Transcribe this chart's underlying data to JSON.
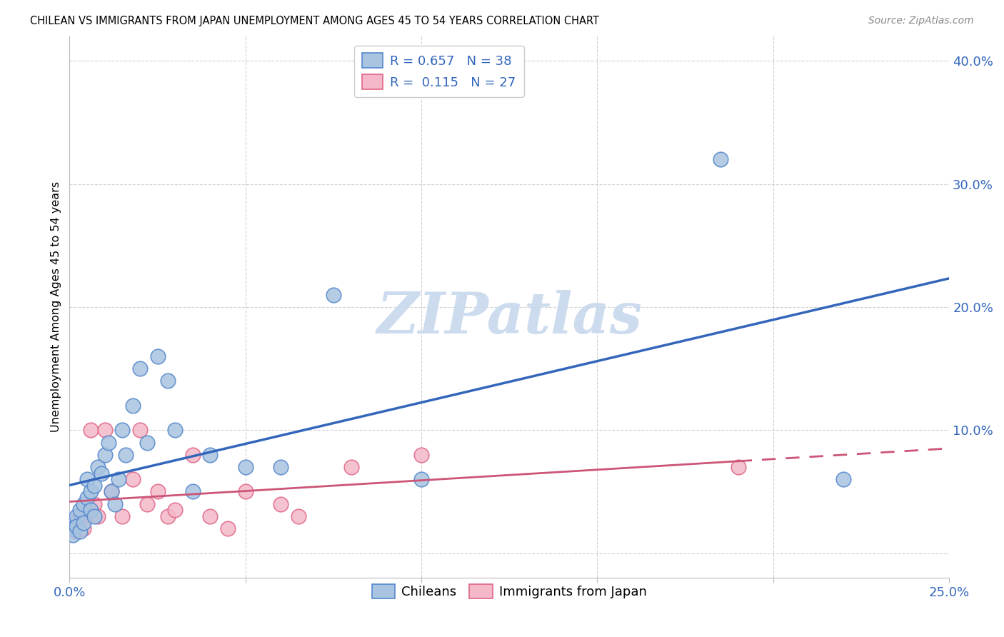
{
  "title": "CHILEAN VS IMMIGRANTS FROM JAPAN UNEMPLOYMENT AMONG AGES 45 TO 54 YEARS CORRELATION CHART",
  "source": "Source: ZipAtlas.com",
  "ylabel": "Unemployment Among Ages 45 to 54 years",
  "xlim": [
    0.0,
    0.25
  ],
  "ylim": [
    -0.02,
    0.42
  ],
  "blue_scatter_color": "#A8C4E0",
  "blue_edge_color": "#5588CC",
  "pink_scatter_color": "#F4B8C8",
  "pink_edge_color": "#E06688",
  "blue_line_color": "#3366BB",
  "pink_line_color": "#CC5577",
  "watermark_color": "#C8D8EE",
  "chileans_x": [
    0.0,
    0.001,
    0.001,
    0.002,
    0.002,
    0.003,
    0.003,
    0.004,
    0.004,
    0.005,
    0.005,
    0.006,
    0.006,
    0.007,
    0.007,
    0.008,
    0.009,
    0.01,
    0.011,
    0.012,
    0.013,
    0.014,
    0.015,
    0.016,
    0.018,
    0.02,
    0.022,
    0.025,
    0.028,
    0.03,
    0.035,
    0.04,
    0.05,
    0.06,
    0.075,
    0.1,
    0.185,
    0.22
  ],
  "chileans_y": [
    0.025,
    0.02,
    0.015,
    0.03,
    0.022,
    0.018,
    0.035,
    0.025,
    0.04,
    0.06,
    0.045,
    0.05,
    0.035,
    0.055,
    0.03,
    0.07,
    0.065,
    0.08,
    0.09,
    0.05,
    0.04,
    0.06,
    0.1,
    0.08,
    0.12,
    0.15,
    0.09,
    0.16,
    0.14,
    0.1,
    0.05,
    0.08,
    0.07,
    0.07,
    0.21,
    0.06,
    0.32,
    0.06
  ],
  "japan_x": [
    0.0,
    0.001,
    0.002,
    0.003,
    0.004,
    0.005,
    0.006,
    0.007,
    0.008,
    0.01,
    0.012,
    0.015,
    0.018,
    0.02,
    0.022,
    0.025,
    0.028,
    0.03,
    0.035,
    0.04,
    0.045,
    0.05,
    0.06,
    0.065,
    0.08,
    0.1,
    0.19
  ],
  "japan_y": [
    0.02,
    0.025,
    0.018,
    0.03,
    0.02,
    0.035,
    0.1,
    0.04,
    0.03,
    0.1,
    0.05,
    0.03,
    0.06,
    0.1,
    0.04,
    0.05,
    0.03,
    0.035,
    0.08,
    0.03,
    0.02,
    0.05,
    0.04,
    0.03,
    0.07,
    0.08,
    0.07
  ]
}
